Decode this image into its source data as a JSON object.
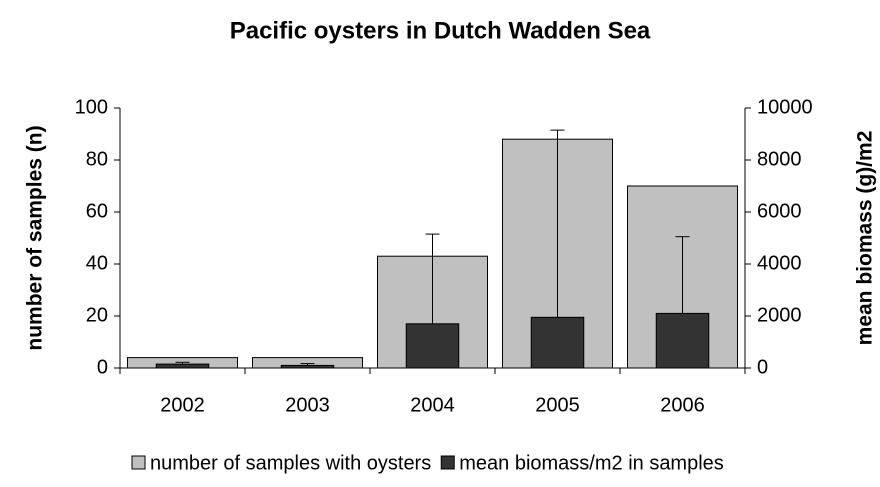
{
  "chart_data": {
    "type": "bar",
    "title": "Pacific oysters in Dutch Wadden Sea",
    "y_label": "number of samples (n)",
    "y2_label": "mean biomass (g)/m2",
    "categories": [
      "2002",
      "2003",
      "2004",
      "2005",
      "2006"
    ],
    "series": [
      {
        "name": "number of samples with oysters",
        "color": "#c0c0c0",
        "values": [
          4,
          4,
          43,
          88,
          70
        ]
      },
      {
        "name": "mean biomass/m2 in samples",
        "color": "#333333",
        "axis": "y2",
        "values": [
          150,
          100,
          1700,
          1950,
          2100
        ],
        "errors": [
          70,
          70,
          3450,
          7200,
          2950
        ]
      }
    ],
    "ylim": [
      0,
      100
    ],
    "yticks": [
      0,
      20,
      40,
      60,
      80,
      100
    ],
    "y2lim": [
      0,
      10000
    ],
    "y2ticks": [
      0,
      2000,
      4000,
      6000,
      8000,
      10000
    ],
    "legend": "bottom"
  }
}
